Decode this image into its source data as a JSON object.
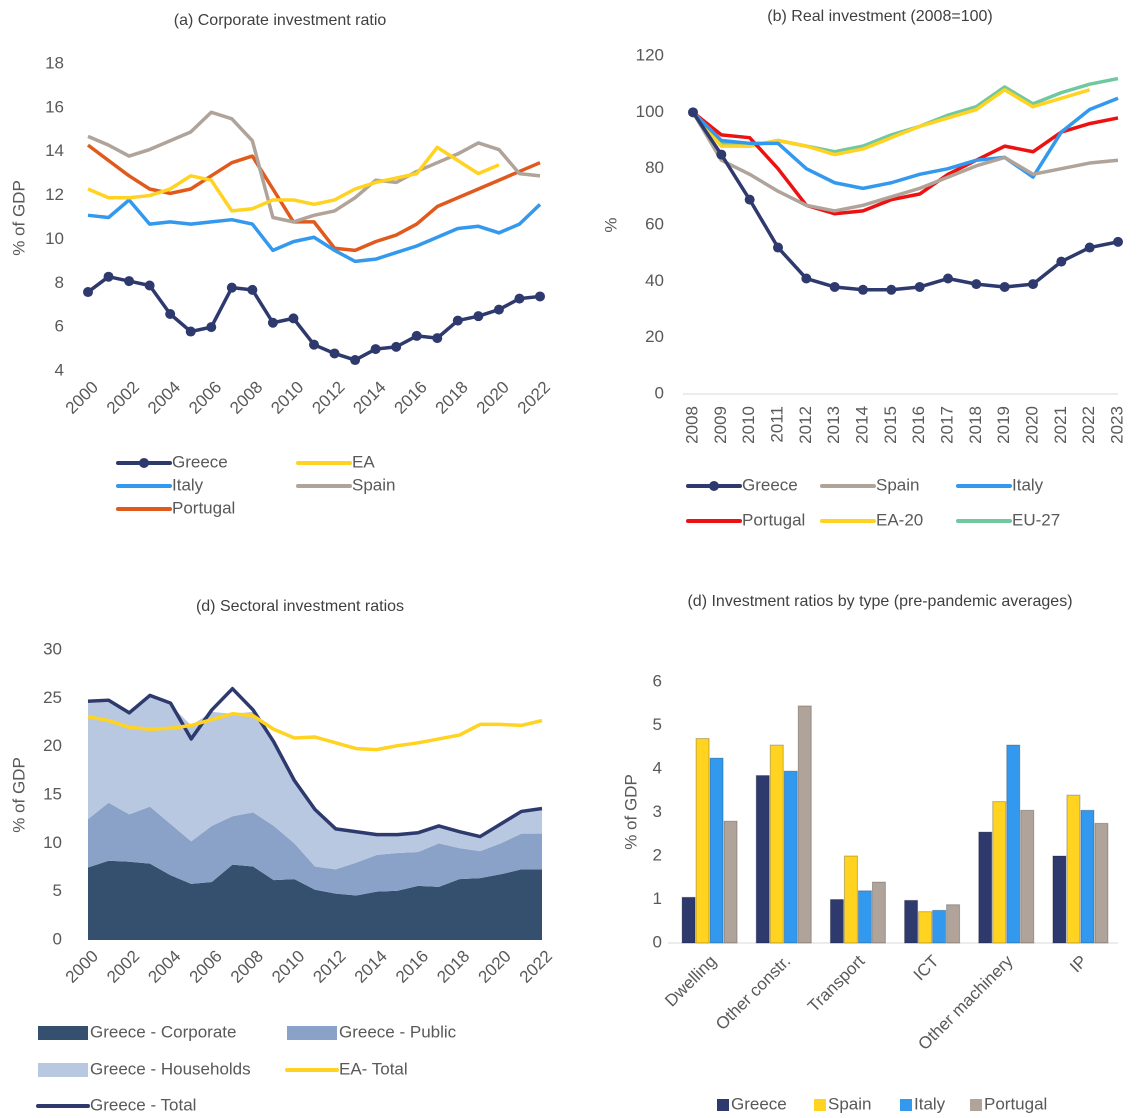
{
  "chart_data": [
    {
      "type": "line",
      "title": "(a) Corporate investment ratio",
      "y_label": "% of GDP",
      "x": [
        2000,
        2001,
        2002,
        2003,
        2004,
        2005,
        2006,
        2007,
        2008,
        2009,
        2010,
        2011,
        2012,
        2013,
        2014,
        2015,
        2016,
        2017,
        2018,
        2019,
        2020,
        2021,
        2022
      ],
      "xlim": [
        2000,
        2022
      ],
      "xticks": [
        2000,
        2002,
        2004,
        2006,
        2008,
        2010,
        2012,
        2014,
        2016,
        2018,
        2020,
        2022
      ],
      "ylim": [
        4,
        18
      ],
      "yticks": [
        4,
        6,
        8,
        10,
        12,
        14,
        16,
        18
      ],
      "grid": false,
      "series": [
        {
          "name": "Greece",
          "color": "#2e3a6e",
          "markers": true,
          "values": [
            7.6,
            8.3,
            8.1,
            7.9,
            6.6,
            5.8,
            6.0,
            7.8,
            7.7,
            6.2,
            6.4,
            5.2,
            4.8,
            4.5,
            5.0,
            5.1,
            5.6,
            5.5,
            6.3,
            6.5,
            6.8,
            7.3,
            7.4
          ]
        },
        {
          "name": "EA",
          "color": "#ffd320",
          "values": [
            12.3,
            11.9,
            11.9,
            12.0,
            12.3,
            12.9,
            12.7,
            11.3,
            11.4,
            11.8,
            11.8,
            11.6,
            11.8,
            12.3,
            12.6,
            12.8,
            13.0,
            14.2,
            13.6,
            13.0,
            13.4,
            null,
            null
          ]
        },
        {
          "name": "Italy",
          "color": "#3399ee",
          "values": [
            11.1,
            11.0,
            11.8,
            10.7,
            10.8,
            10.7,
            10.8,
            10.9,
            10.7,
            9.5,
            9.9,
            10.1,
            9.5,
            9.0,
            9.1,
            9.4,
            9.7,
            10.1,
            10.5,
            10.6,
            10.3,
            10.7,
            11.6
          ]
        },
        {
          "name": "Spain",
          "color": "#b0a39a",
          "values": [
            14.7,
            14.3,
            13.8,
            14.1,
            14.5,
            14.9,
            15.8,
            15.5,
            14.5,
            11.0,
            10.8,
            11.1,
            11.3,
            11.9,
            12.7,
            12.6,
            13.1,
            13.5,
            13.9,
            14.4,
            14.1,
            13.0,
            12.9
          ]
        },
        {
          "name": "Portugal",
          "color": "#e05a1e",
          "values": [
            14.3,
            13.6,
            12.9,
            12.3,
            12.1,
            12.3,
            12.9,
            13.5,
            13.8,
            12.3,
            10.8,
            10.8,
            9.6,
            9.5,
            9.9,
            10.2,
            10.7,
            11.5,
            11.9,
            12.3,
            12.7,
            13.1,
            13.5
          ]
        }
      ]
    },
    {
      "type": "line",
      "title": "(b) Real investment (2008=100)",
      "y_label": "%",
      "x": [
        2008,
        2009,
        2010,
        2011,
        2012,
        2013,
        2014,
        2015,
        2016,
        2017,
        2018,
        2019,
        2020,
        2021,
        2022,
        2023
      ],
      "xlim": [
        2008,
        2023
      ],
      "xticks": [
        2008,
        2009,
        2010,
        2011,
        2012,
        2013,
        2014,
        2015,
        2016,
        2017,
        2018,
        2019,
        2020,
        2021,
        2022,
        2023
      ],
      "ylim": [
        0,
        120
      ],
      "yticks": [
        0,
        20,
        40,
        60,
        80,
        100,
        120
      ],
      "grid": false,
      "series": [
        {
          "name": "Greece",
          "color": "#2e3a6e",
          "markers": true,
          "values": [
            100,
            85,
            69,
            52,
            41,
            38,
            37,
            37,
            38,
            41,
            39,
            38,
            39,
            47,
            52,
            54
          ]
        },
        {
          "name": "Spain",
          "color": "#b0a39a",
          "values": [
            100,
            83,
            78,
            72,
            67,
            65,
            67,
            70,
            73,
            77,
            81,
            84,
            78,
            80,
            82,
            83
          ]
        },
        {
          "name": "Italy",
          "color": "#3399ee",
          "values": [
            100,
            90,
            89,
            89,
            80,
            75,
            73,
            75,
            78,
            80,
            83,
            84,
            77,
            93,
            101,
            105
          ]
        },
        {
          "name": "Portugal",
          "color": "#ee1111",
          "values": [
            100,
            92,
            91,
            80,
            67,
            64,
            65,
            69,
            71,
            78,
            83,
            88,
            86,
            93,
            96,
            98
          ]
        },
        {
          "name": "EA-20",
          "color": "#ffd320",
          "values": [
            100,
            88,
            88,
            90,
            88,
            85,
            87,
            91,
            95,
            98,
            101,
            108,
            102,
            105,
            108,
            null
          ]
        },
        {
          "name": "EU-27",
          "color": "#70c8a0",
          "values": [
            100,
            89,
            88,
            90,
            88,
            86,
            88,
            92,
            95,
            99,
            102,
            109,
            103,
            107,
            110,
            112
          ]
        }
      ]
    },
    {
      "type": "area",
      "title": "(d) Sectoral investment ratios",
      "y_label": "% of GDP",
      "x": [
        2000,
        2001,
        2002,
        2003,
        2004,
        2005,
        2006,
        2007,
        2008,
        2009,
        2010,
        2011,
        2012,
        2013,
        2014,
        2015,
        2016,
        2017,
        2018,
        2019,
        2020,
        2021,
        2022
      ],
      "xlim": [
        2000,
        2022
      ],
      "xticks": [
        2000,
        2002,
        2004,
        2006,
        2008,
        2010,
        2012,
        2014,
        2016,
        2018,
        2020,
        2022
      ],
      "ylim": [
        0,
        30
      ],
      "yticks": [
        0,
        5,
        10,
        15,
        20,
        25,
        30
      ],
      "grid": false,
      "series": [
        {
          "name": "Greece - Corporate",
          "color": "#34506e",
          "type": "area",
          "values": [
            7.5,
            8.2,
            8.1,
            7.9,
            6.7,
            5.8,
            6.0,
            7.8,
            7.6,
            6.2,
            6.3,
            5.2,
            4.8,
            4.6,
            5.0,
            5.1,
            5.6,
            5.5,
            6.3,
            6.4,
            6.8,
            7.3,
            7.3
          ]
        },
        {
          "name": "Greece - Public",
          "color": "#8aa2c8",
          "type": "area",
          "values": [
            5.0,
            6.0,
            4.9,
            5.9,
            5.3,
            4.4,
            5.8,
            5.0,
            5.6,
            5.6,
            3.7,
            2.4,
            2.5,
            3.4,
            3.8,
            3.9,
            3.5,
            4.5,
            3.2,
            2.8,
            3.2,
            3.7,
            3.7
          ]
        },
        {
          "name": "Greece - Households",
          "color": "#b8c8e0",
          "type": "area",
          "values": [
            12.0,
            10.4,
            10.3,
            11.3,
            12.3,
            12.0,
            11.8,
            10.6,
            10.4,
            8.5,
            6.4,
            5.8,
            4.1,
            3.1,
            2.0,
            1.8,
            1.9,
            1.7,
            1.6,
            1.4,
            1.9,
            2.2,
            2.5
          ]
        },
        {
          "name": "EA- Total",
          "color": "#ffd320",
          "type": "line",
          "values": [
            23.1,
            22.7,
            22.0,
            21.8,
            21.9,
            22.2,
            22.8,
            23.4,
            23.2,
            21.8,
            20.9,
            21.0,
            20.4,
            19.8,
            19.7,
            20.1,
            20.4,
            20.8,
            21.2,
            22.3,
            22.3,
            22.2,
            22.7
          ]
        },
        {
          "name": "Greece - Total",
          "color": "#2e3a6e",
          "type": "line",
          "values": [
            24.7,
            24.8,
            23.5,
            25.3,
            24.5,
            20.8,
            23.8,
            26.0,
            23.8,
            20.5,
            16.5,
            13.5,
            11.5,
            11.2,
            10.9,
            10.9,
            11.1,
            11.8,
            11.2,
            10.7,
            12.0,
            13.3,
            13.6
          ]
        }
      ]
    },
    {
      "type": "bar",
      "title": "(d) Investment ratios by type (pre-pandemic averages)",
      "y_label": "% of GDP",
      "categories": [
        "Dwelling",
        "Other constr.",
        "Transport",
        "ICT",
        "Other machinery",
        "IP"
      ],
      "ylim": [
        0,
        6
      ],
      "yticks": [
        0,
        1,
        2,
        3,
        4,
        5,
        6
      ],
      "grid": false,
      "series": [
        {
          "name": "Greece",
          "color": "#2e3a6e",
          "values": [
            1.05,
            3.85,
            1.0,
            0.98,
            2.55,
            2.0
          ]
        },
        {
          "name": "Spain",
          "color": "#ffd320",
          "values": [
            4.7,
            4.55,
            2.0,
            0.72,
            3.25,
            3.4
          ]
        },
        {
          "name": "Italy",
          "color": "#3399ee",
          "values": [
            4.25,
            3.95,
            1.2,
            0.75,
            4.55,
            3.05
          ]
        },
        {
          "name": "Portugal",
          "color": "#b0a39a",
          "values": [
            2.8,
            5.45,
            1.4,
            0.88,
            3.05,
            2.75
          ]
        }
      ]
    }
  ]
}
